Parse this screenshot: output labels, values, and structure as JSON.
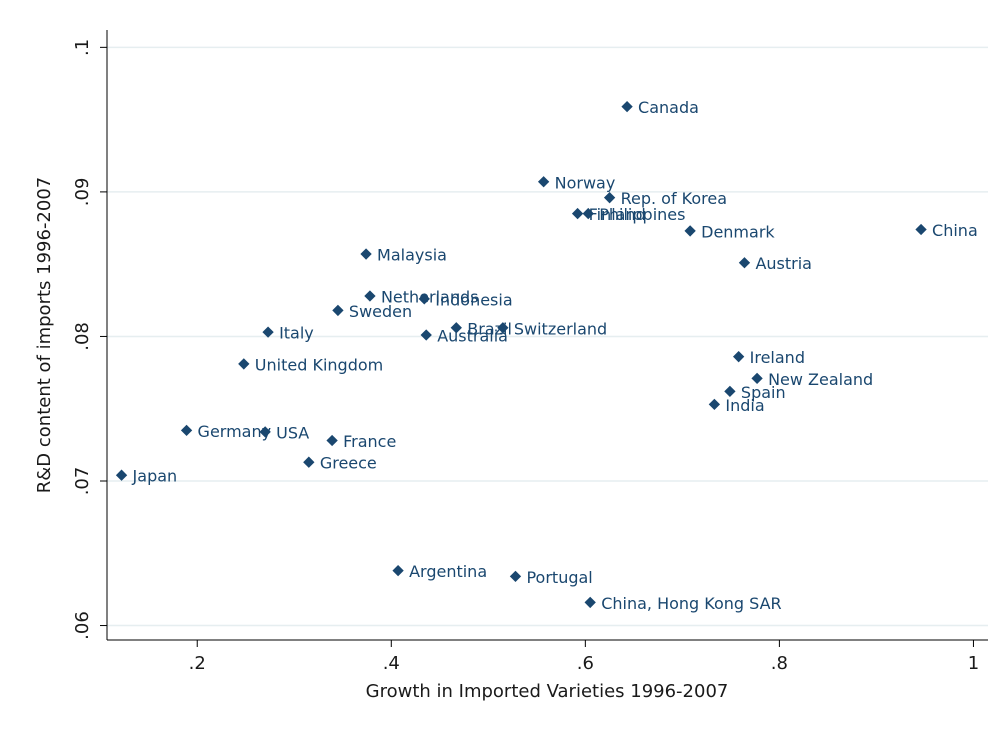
{
  "chart_data": {
    "type": "scatter",
    "x_label": "Growth in Imported Varieties 1996-2007",
    "y_label": "R&D content of imports 1996-2007",
    "color": "#1a476f",
    "grid": true,
    "xlim": [
      0.107,
      1.015
    ],
    "ylim": [
      0.059,
      0.1012
    ],
    "xticks": [
      {
        "value": 0.2,
        "label": ".2"
      },
      {
        "value": 0.4,
        "label": ".4"
      },
      {
        "value": 0.6,
        "label": ".6"
      },
      {
        "value": 0.8,
        "label": ".8"
      },
      1
    ],
    "yticks": [
      {
        "value": 0.06,
        "label": ".06"
      },
      {
        "value": 0.07,
        "label": ".07"
      },
      {
        "value": 0.08,
        "label": ".08"
      },
      {
        "value": 0.09,
        "label": ".09"
      },
      {
        "value": 0.1,
        "label": ".1"
      }
    ],
    "labels": [
      "Canada",
      "Norway",
      "Rep. of Korea",
      "Finland",
      "Philippines",
      "Denmark",
      "China",
      "Malaysia",
      "Austria",
      "Netherlands",
      "Indonesia",
      "Sweden",
      "Italy",
      "Australia",
      "Brazil",
      "Switzerland",
      "Ireland",
      "United Kingdom",
      "New Zealand",
      "Spain",
      "India",
      "Germany",
      "USA",
      "France",
      "Greece",
      "Japan",
      "Argentina",
      "Portugal",
      "China, Hong Kong SAR"
    ],
    "x": [
      0.643,
      0.557,
      0.625,
      0.592,
      0.603,
      0.708,
      0.946,
      0.374,
      0.764,
      0.378,
      0.434,
      0.345,
      0.273,
      0.436,
      0.467,
      0.515,
      0.758,
      0.248,
      0.777,
      0.749,
      0.733,
      0.189,
      0.27,
      0.339,
      0.315,
      0.122,
      0.407,
      0.528,
      0.605
    ],
    "values": [
      0.0959,
      0.0907,
      0.0896,
      0.0885,
      0.0885,
      0.0873,
      0.0874,
      0.0857,
      0.0851,
      0.0828,
      0.0826,
      0.0818,
      0.0803,
      0.0801,
      0.0806,
      0.0806,
      0.0786,
      0.0781,
      0.0771,
      0.0762,
      0.0753,
      0.0735,
      0.0734,
      0.0728,
      0.0713,
      0.0704,
      0.0638,
      0.0634,
      0.0616
    ]
  }
}
